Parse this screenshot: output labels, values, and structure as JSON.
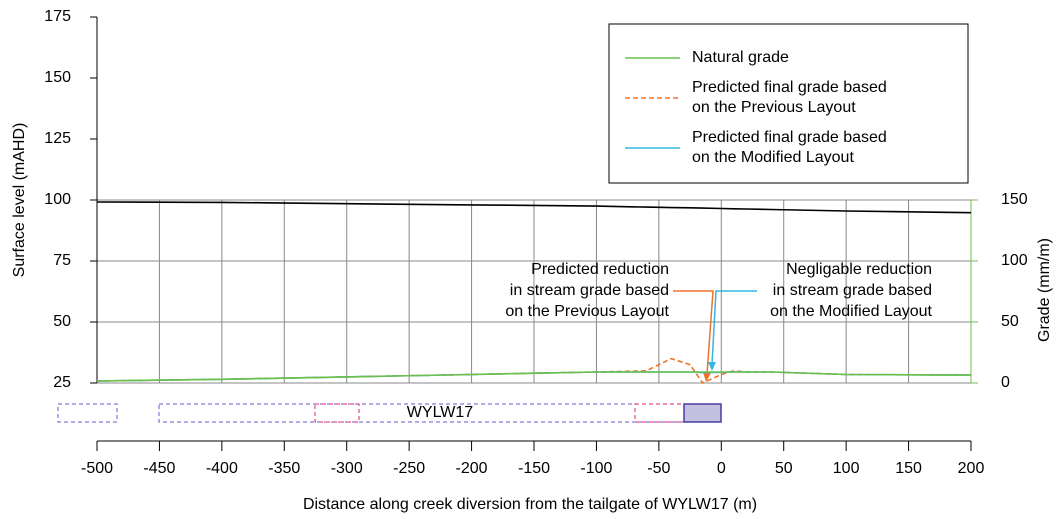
{
  "chart_data": {
    "type": "line",
    "ylabel": "Surface level (mAHD)",
    "y2label": "Grade (mm/m)",
    "xlabel": "Distance along creek diversion from the tailgate of WYLW17 (m)",
    "x": [
      -500,
      -400,
      -300,
      -200,
      -150,
      -100,
      -60,
      -40,
      -25,
      -15,
      0,
      10,
      20,
      40,
      100,
      200
    ],
    "series": [
      {
        "color": "#000000",
        "axis": "y",
        "values": [
          99.2,
          99,
          98.5,
          98,
          97.8,
          97.5,
          97.1,
          96.9,
          96.8,
          96.7,
          96.5,
          96.4,
          96.3,
          96.1,
          95.5,
          94.8
        ]
      },
      {
        "name": "Predicted final grade based on the Previous Layout",
        "color": "#f07028",
        "dash": true,
        "axis": "y2",
        "values": [
          1.6,
          3,
          5,
          7,
          8,
          9,
          10,
          20,
          15,
          0,
          7,
          10,
          9,
          9,
          7,
          6.5
        ]
      },
      {
        "name": "Predicted final grade based on the Modified Layout",
        "color": "#30b8e0",
        "axis": "y2",
        "values": [
          1.6,
          3,
          5,
          7,
          8,
          9,
          9,
          9,
          9,
          8.5,
          8.8,
          9,
          9,
          9,
          7,
          6.5
        ]
      },
      {
        "name": "Natural grade",
        "color": "#6cc04a",
        "axis": "y2",
        "values": [
          1.6,
          3,
          5,
          7,
          8,
          9,
          9,
          9,
          9,
          9,
          9,
          9,
          9,
          9,
          7,
          6.5
        ]
      }
    ],
    "legend_order": [
      3,
      1,
      2
    ],
    "xlim": [
      -500,
      200
    ],
    "xticks": [
      -500,
      -450,
      -400,
      -350,
      -300,
      -250,
      -200,
      -150,
      -100,
      -50,
      0,
      50,
      100,
      150,
      200
    ],
    "ylim": [
      25,
      175
    ],
    "yticks": [
      25,
      50,
      75,
      100,
      125,
      150,
      175
    ],
    "y2lim": [
      0,
      150
    ],
    "y2ticks": [
      0,
      50,
      100,
      150
    ],
    "y2color": "#6cc04a",
    "grid": true,
    "panel_label": "WYLW17",
    "annotations": [
      {
        "lines": [
          "Predicted reduction",
          "in stream grade based",
          "on the Previous Layout"
        ],
        "color": "#f07028"
      },
      {
        "lines": [
          "Negligable reduction",
          "in stream grade based",
          "on the Modified Layout"
        ],
        "color": "#30b8e0"
      }
    ]
  }
}
